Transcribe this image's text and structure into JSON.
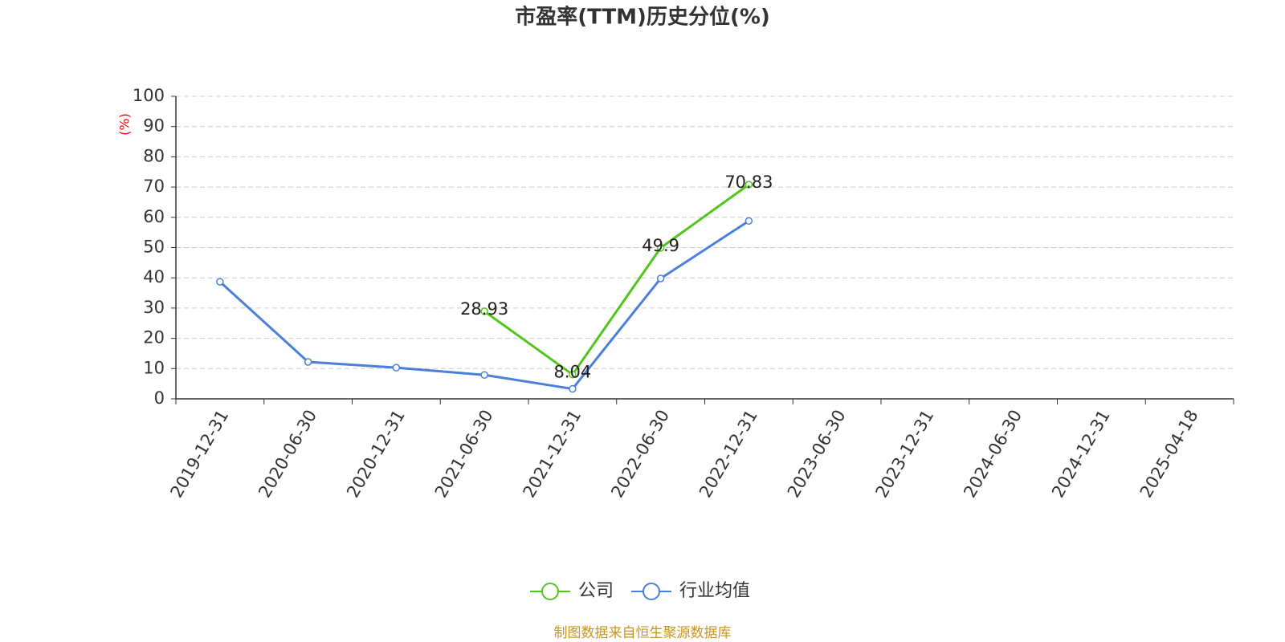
{
  "chart_data": {
    "type": "line",
    "title": "市盈率(TTM)历史分位(%)",
    "y_label": "(%)",
    "categories": [
      "2019-12-31",
      "2020-06-30",
      "2020-12-31",
      "2021-06-30",
      "2021-12-31",
      "2022-06-30",
      "2022-12-31",
      "2023-06-30",
      "2023-12-31",
      "2024-06-30",
      "2024-12-31",
      "2025-04-18"
    ],
    "series": [
      {
        "name": "公司",
        "color": "#52c41a",
        "values": [
          null,
          null,
          null,
          28.93,
          8.04,
          49.9,
          70.83,
          null,
          null,
          null,
          null,
          null
        ]
      },
      {
        "name": "行业均值",
        "color": "#4a7fdc",
        "values": [
          38.7,
          12.2,
          10.3,
          7.9,
          3.3,
          39.8,
          58.8,
          null,
          null,
          null,
          null,
          null
        ]
      }
    ],
    "data_labels_series": 0,
    "ylim": [
      0,
      100
    ],
    "yticks": [
      0,
      10,
      20,
      30,
      40,
      50,
      60,
      70,
      80,
      90,
      100
    ],
    "grid": true,
    "source": "制图数据来自恒生聚源数据库"
  }
}
